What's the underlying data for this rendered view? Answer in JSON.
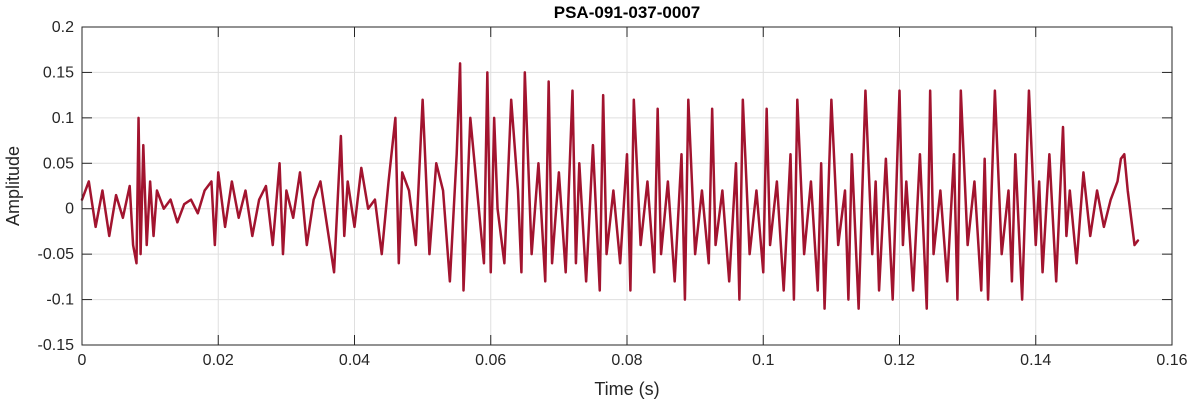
{
  "chart_data": {
    "type": "line",
    "title": "PSA-091-037-0007",
    "xlabel": "Time (s)",
    "ylabel": "Amplitude",
    "xlim": [
      0,
      0.16
    ],
    "ylim": [
      -0.15,
      0.2
    ],
    "grid": true,
    "x_ticks": [
      0,
      0.02,
      0.04,
      0.06,
      0.08,
      0.1,
      0.12,
      0.14,
      0.16
    ],
    "x_tick_labels": [
      "0",
      "0.02",
      "0.04",
      "0.06",
      "0.08",
      "0.1",
      "0.12",
      "0.14",
      "0.16"
    ],
    "y_ticks": [
      -0.15,
      -0.1,
      -0.05,
      0,
      0.05,
      0.1,
      0.15,
      0.2
    ],
    "y_tick_labels": [
      "-0.15",
      "-0.1",
      "-0.05",
      "0",
      "0.05",
      "0.1",
      "0.15",
      "0.2"
    ],
    "series": [
      {
        "color": "#a2142f",
        "x": [
          0.0,
          0.001,
          0.002,
          0.003,
          0.004,
          0.005,
          0.006,
          0.007,
          0.0075,
          0.008,
          0.0083,
          0.0086,
          0.009,
          0.0095,
          0.01,
          0.0105,
          0.011,
          0.012,
          0.013,
          0.014,
          0.015,
          0.016,
          0.017,
          0.018,
          0.019,
          0.0195,
          0.02,
          0.021,
          0.022,
          0.023,
          0.024,
          0.025,
          0.026,
          0.027,
          0.028,
          0.029,
          0.0295,
          0.03,
          0.031,
          0.032,
          0.033,
          0.034,
          0.035,
          0.036,
          0.037,
          0.038,
          0.0385,
          0.039,
          0.04,
          0.041,
          0.042,
          0.043,
          0.044,
          0.045,
          0.046,
          0.0465,
          0.047,
          0.048,
          0.049,
          0.05,
          0.051,
          0.052,
          0.053,
          0.054,
          0.055,
          0.0555,
          0.056,
          0.057,
          0.058,
          0.059,
          0.0595,
          0.06,
          0.0605,
          0.061,
          0.062,
          0.063,
          0.064,
          0.0645,
          0.065,
          0.066,
          0.067,
          0.068,
          0.0685,
          0.069,
          0.07,
          0.071,
          0.072,
          0.0725,
          0.073,
          0.074,
          0.075,
          0.076,
          0.0765,
          0.077,
          0.078,
          0.079,
          0.08,
          0.0805,
          0.081,
          0.082,
          0.083,
          0.084,
          0.0845,
          0.085,
          0.086,
          0.087,
          0.088,
          0.0885,
          0.089,
          0.09,
          0.091,
          0.092,
          0.0925,
          0.093,
          0.094,
          0.095,
          0.096,
          0.0965,
          0.097,
          0.098,
          0.099,
          0.1,
          0.1005,
          0.101,
          0.102,
          0.103,
          0.104,
          0.1045,
          0.105,
          0.106,
          0.107,
          0.108,
          0.1085,
          0.109,
          0.11,
          0.111,
          0.112,
          0.1125,
          0.113,
          0.114,
          0.115,
          0.116,
          0.1165,
          0.117,
          0.118,
          0.119,
          0.12,
          0.1205,
          0.121,
          0.122,
          0.123,
          0.124,
          0.1245,
          0.125,
          0.126,
          0.127,
          0.128,
          0.1285,
          0.129,
          0.13,
          0.131,
          0.132,
          0.1325,
          0.133,
          0.134,
          0.135,
          0.136,
          0.1365,
          0.137,
          0.138,
          0.139,
          0.14,
          0.1405,
          0.141,
          0.142,
          0.143,
          0.144,
          0.1445,
          0.145,
          0.146,
          0.147,
          0.148,
          0.149,
          0.15,
          0.151,
          0.152,
          0.1525,
          0.153,
          0.1535,
          0.154,
          0.1545,
          0.155
        ],
        "y": [
          0.01,
          0.03,
          -0.02,
          0.02,
          -0.03,
          0.015,
          -0.01,
          0.025,
          -0.04,
          -0.06,
          0.1,
          -0.05,
          0.07,
          -0.04,
          0.03,
          -0.03,
          0.02,
          0.0,
          0.01,
          -0.015,
          0.005,
          0.01,
          -0.005,
          0.02,
          0.03,
          -0.04,
          0.04,
          -0.02,
          0.03,
          -0.01,
          0.02,
          -0.03,
          0.01,
          0.025,
          -0.04,
          0.05,
          -0.05,
          0.02,
          -0.01,
          0.04,
          -0.04,
          0.01,
          0.03,
          -0.02,
          -0.07,
          0.08,
          -0.03,
          0.03,
          -0.02,
          0.045,
          0.0,
          0.01,
          -0.05,
          0.03,
          0.1,
          -0.06,
          0.04,
          0.02,
          -0.04,
          0.12,
          -0.05,
          0.05,
          0.02,
          -0.08,
          0.06,
          0.16,
          -0.09,
          0.1,
          0.02,
          -0.06,
          0.15,
          -0.07,
          0.1,
          0.0,
          -0.06,
          0.12,
          0.02,
          -0.07,
          0.15,
          -0.05,
          0.05,
          -0.08,
          0.14,
          -0.06,
          0.04,
          -0.07,
          0.13,
          -0.06,
          0.05,
          -0.08,
          0.07,
          -0.09,
          0.125,
          -0.05,
          0.02,
          -0.06,
          0.06,
          -0.09,
          0.12,
          -0.04,
          0.03,
          -0.07,
          0.11,
          -0.05,
          0.03,
          -0.08,
          0.06,
          -0.1,
          0.12,
          -0.05,
          0.02,
          -0.06,
          0.11,
          -0.04,
          0.02,
          -0.08,
          0.05,
          -0.1,
          0.12,
          -0.05,
          0.02,
          -0.07,
          0.11,
          -0.04,
          0.03,
          -0.09,
          0.06,
          -0.1,
          0.12,
          -0.05,
          0.03,
          -0.09,
          0.05,
          -0.11,
          0.12,
          -0.04,
          0.02,
          -0.1,
          0.06,
          -0.11,
          0.13,
          -0.05,
          0.03,
          -0.09,
          0.055,
          -0.1,
          0.13,
          -0.04,
          0.03,
          -0.09,
          0.06,
          -0.11,
          0.13,
          -0.05,
          0.02,
          -0.08,
          0.06,
          -0.1,
          0.13,
          -0.04,
          0.03,
          -0.09,
          0.055,
          -0.1,
          0.13,
          -0.05,
          0.02,
          -0.08,
          0.06,
          -0.1,
          0.13,
          -0.04,
          0.03,
          -0.07,
          0.06,
          -0.08,
          0.09,
          -0.03,
          0.02,
          -0.06,
          0.04,
          -0.03,
          0.02,
          -0.02,
          0.01,
          0.03,
          0.055,
          0.06,
          0.02,
          -0.01,
          -0.04,
          -0.035
        ]
      }
    ]
  }
}
